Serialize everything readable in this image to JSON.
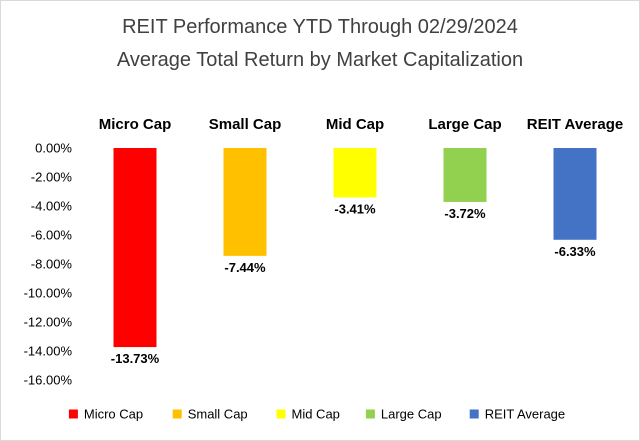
{
  "chart_data": {
    "type": "bar",
    "title": "REIT Performance YTD Through 02/29/2024",
    "subtitle": "Average Total Return by Market Capitalization",
    "categories": [
      "Micro Cap",
      "Small Cap",
      "Mid Cap",
      "Large Cap",
      "REIT Average"
    ],
    "values": [
      -13.73,
      -7.44,
      -3.41,
      -3.72,
      -6.33
    ],
    "data_labels": [
      "-13.73%",
      "-7.44%",
      "-3.41%",
      "-3.72%",
      "-6.33%"
    ],
    "colors": [
      "#ff0000",
      "#ffc000",
      "#ffff00",
      "#92d050",
      "#4472c4"
    ],
    "ylim": [
      -16,
      0
    ],
    "yticks": [
      0,
      -2,
      -4,
      -6,
      -8,
      -10,
      -12,
      -14,
      -16
    ],
    "ytick_labels": [
      "0.00%",
      "-2.00%",
      "-4.00%",
      "-6.00%",
      "-8.00%",
      "-10.00%",
      "-12.00%",
      "-14.00%",
      "-16.00%"
    ],
    "legend": [
      "Micro Cap",
      "Small Cap",
      "Mid Cap",
      "Large Cap",
      "REIT Average"
    ],
    "legend_position": "bottom",
    "xlabel": "",
    "ylabel": "",
    "grid": false
  }
}
